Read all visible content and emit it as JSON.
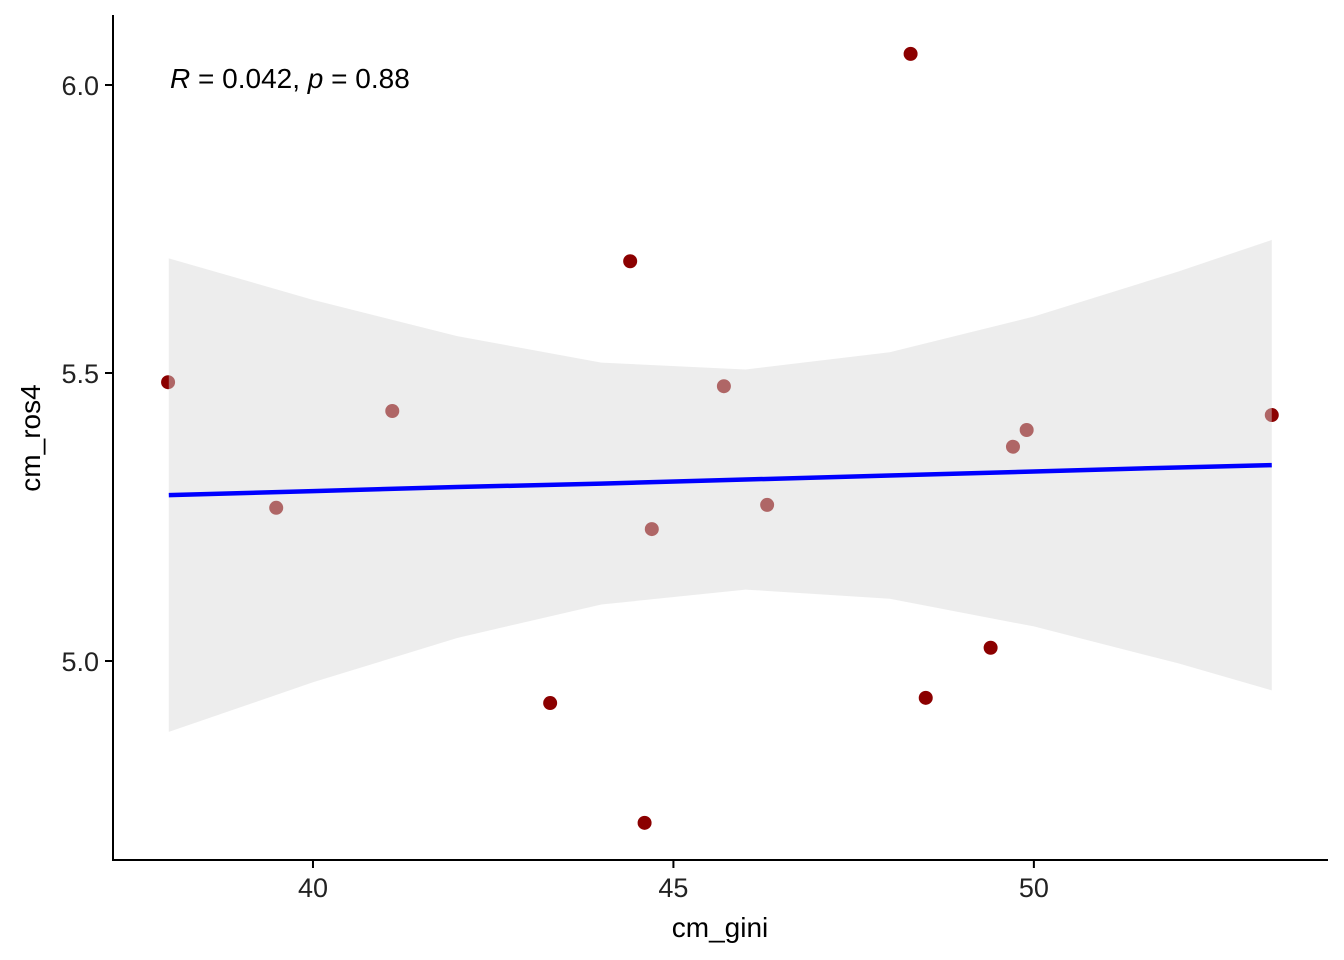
{
  "chart_data": {
    "type": "scatter",
    "xlabel": "cm_gini",
    "ylabel": "cm_ros4",
    "xlim": [
      37.226,
      54.08
    ],
    "ylim": [
      4.6545,
      6.1215
    ],
    "xticks": [
      40,
      45,
      50
    ],
    "xtick_labels": [
      "40",
      "45",
      "50"
    ],
    "yticks": [
      5.0,
      5.5,
      6.0
    ],
    "ytick_labels": [
      "5.0",
      "5.5",
      "6.0"
    ],
    "grid": false,
    "annotation": {
      "r_label": "R",
      "r_text": " = 0.042, ",
      "p_label": "p",
      "p_text": " = 0.88"
    },
    "point_color": "#8B0000",
    "line_color": "#0000FF",
    "ribbon_color": "#D9D9D9",
    "points": [
      {
        "x": 37.99,
        "y": 5.484
      },
      {
        "x": 39.49,
        "y": 5.266
      },
      {
        "x": 41.1,
        "y": 5.434
      },
      {
        "x": 43.29,
        "y": 4.927
      },
      {
        "x": 44.4,
        "y": 5.694
      },
      {
        "x": 44.6,
        "y": 4.719
      },
      {
        "x": 44.7,
        "y": 5.229
      },
      {
        "x": 45.7,
        "y": 5.477
      },
      {
        "x": 46.3,
        "y": 5.271
      },
      {
        "x": 48.29,
        "y": 6.054
      },
      {
        "x": 48.5,
        "y": 4.936
      },
      {
        "x": 49.4,
        "y": 5.023
      },
      {
        "x": 49.71,
        "y": 5.372
      },
      {
        "x": 49.9,
        "y": 5.401
      },
      {
        "x": 53.3,
        "y": 5.427
      }
    ],
    "fit": {
      "x": [
        38,
        40,
        42,
        44,
        46,
        48,
        50,
        52,
        53.3
      ],
      "y": [
        5.288,
        5.295,
        5.302,
        5.308,
        5.315,
        5.322,
        5.329,
        5.336,
        5.34
      ],
      "lower": [
        4.877,
        4.963,
        5.04,
        5.098,
        5.124,
        5.108,
        5.06,
        4.996,
        4.949
      ],
      "upper": [
        5.699,
        5.627,
        5.564,
        5.518,
        5.506,
        5.536,
        5.598,
        5.676,
        5.731
      ]
    }
  }
}
